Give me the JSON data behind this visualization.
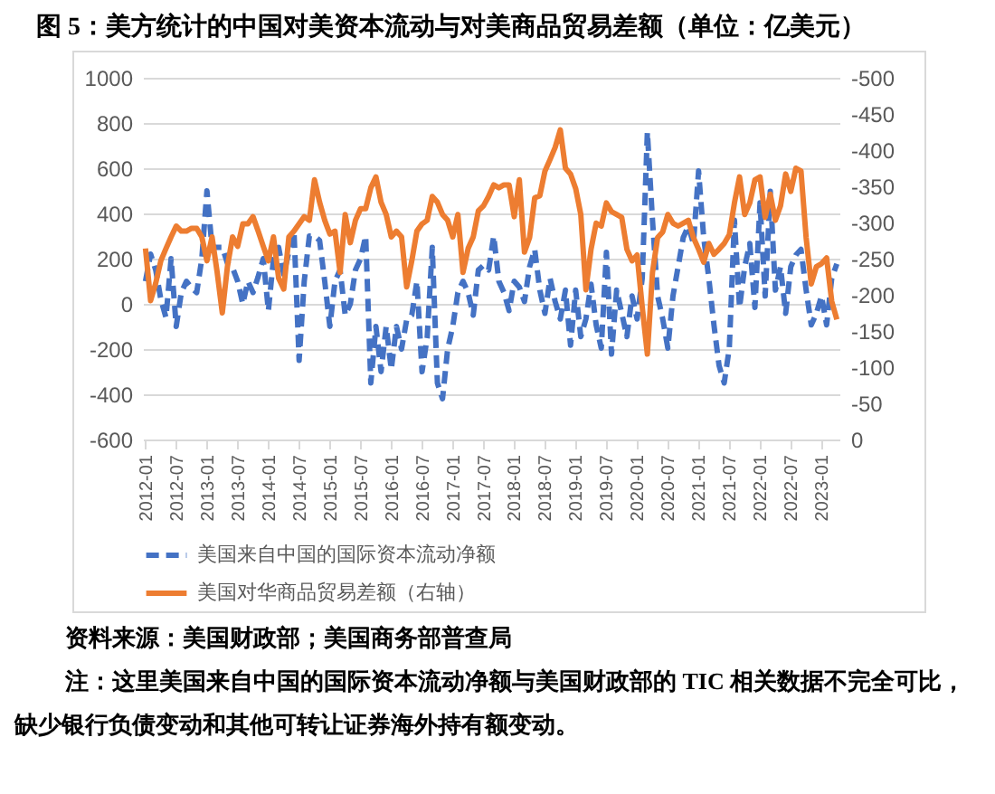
{
  "chart_data": {
    "type": "line",
    "title": "图 5：美方统计的中国对美资本流动与对美商品贸易差额（单位：亿美元）",
    "categories": [
      "2012-01",
      null,
      null,
      null,
      null,
      null,
      "2012-07",
      null,
      null,
      null,
      null,
      null,
      "2013-01",
      null,
      null,
      null,
      null,
      null,
      "2013-07",
      null,
      null,
      null,
      null,
      null,
      "2014-01",
      null,
      null,
      null,
      null,
      null,
      "2014-07",
      null,
      null,
      null,
      null,
      null,
      "2015-01",
      null,
      null,
      null,
      null,
      null,
      "2015-07",
      null,
      null,
      null,
      null,
      null,
      "2016-01",
      null,
      null,
      null,
      null,
      null,
      "2016-07",
      null,
      null,
      null,
      null,
      null,
      "2017-01",
      null,
      null,
      null,
      null,
      null,
      "2017-07",
      null,
      null,
      null,
      null,
      null,
      "2018-01",
      null,
      null,
      null,
      null,
      null,
      "2018-07",
      null,
      null,
      null,
      null,
      null,
      "2019-01",
      null,
      null,
      null,
      null,
      null,
      "2019-07",
      null,
      null,
      null,
      null,
      null,
      "2020-01",
      null,
      null,
      null,
      null,
      null,
      "2020-07",
      null,
      null,
      null,
      null,
      null,
      "2021-01",
      null,
      null,
      null,
      null,
      null,
      "2021-07",
      null,
      null,
      null,
      null,
      null,
      "2022-01",
      null,
      null,
      null,
      null,
      null,
      "2022-07",
      null,
      null,
      null,
      null,
      null,
      "2023-01",
      null,
      null,
      null
    ],
    "series": [
      {
        "name": "美国来自中国的国际资本流动净额",
        "color": "#4472c4",
        "line_style": "dashed",
        "values": [
          100,
          220,
          150,
          20,
          -60,
          200,
          -100,
          50,
          100,
          70,
          50,
          200,
          500,
          250,
          250,
          250,
          180,
          160,
          100,
          0,
          100,
          50,
          120,
          200,
          -30,
          200,
          250,
          130,
          230,
          320,
          -250,
          100,
          300,
          300,
          280,
          100,
          -100,
          100,
          150,
          -50,
          0,
          150,
          200,
          300,
          -350,
          -100,
          -300,
          -100,
          -290,
          -100,
          -200,
          -70,
          -50,
          100,
          -300,
          -150,
          250,
          -350,
          -420,
          -200,
          -100,
          50,
          100,
          50,
          -50,
          150,
          170,
          150,
          300,
          100,
          50,
          -30,
          100,
          74,
          10,
          164,
          241,
          61,
          -42,
          113,
          10,
          -67,
          61,
          -183,
          61,
          -145,
          -67,
          87,
          -93,
          -196,
          228,
          -222,
          61,
          -42,
          -145,
          35,
          -67,
          113,
          760,
          370,
          35,
          -67,
          -196,
          35,
          164,
          293,
          344,
          267,
          588,
          293,
          113,
          -93,
          -273,
          -350,
          -196,
          370,
          -16,
          164,
          267,
          -16,
          447,
          35,
          498,
          61,
          164,
          -42,
          164,
          216,
          241,
          61,
          -93,
          -42,
          35,
          -93,
          113,
          177
        ]
      },
      {
        "name": "美国对华商品贸易差额（右轴）",
        "color": "#ed7d31",
        "line_style": "solid",
        "axis": "y2",
        "values": [
          -264,
          -192,
          -216,
          -247,
          -264,
          -280,
          -295,
          -288,
          -288,
          -292,
          -292,
          -280,
          -247,
          -280,
          -231,
          -175,
          -239,
          -280,
          -267,
          -298,
          -298,
          -308,
          -288,
          -267,
          -247,
          -280,
          -223,
          -208,
          -280,
          -288,
          -298,
          -308,
          -303,
          -359,
          -328,
          -303,
          -284,
          -288,
          -231,
          -311,
          -272,
          -303,
          -319,
          -319,
          -348,
          -363,
          -328,
          -311,
          -280,
          -288,
          -280,
          -211,
          -247,
          -288,
          -298,
          -303,
          -336,
          -328,
          -311,
          -303,
          -280,
          -311,
          -231,
          -264,
          -280,
          -316,
          -323,
          -336,
          -352,
          -348,
          -352,
          -352,
          -308,
          -359,
          -259,
          -279,
          -334,
          -337,
          -371,
          -387,
          -404,
          -428,
          -375,
          -367,
          -347,
          -311,
          -207,
          -263,
          -299,
          -295,
          -327,
          -315,
          -311,
          -307,
          -263,
          -247,
          -255,
          -183,
          -118,
          -231,
          -279,
          -287,
          -311,
          -299,
          -295,
          -299,
          -303,
          -279,
          -263,
          -245,
          -271,
          -256,
          -263,
          -271,
          -283,
          -327,
          -363,
          -311,
          -327,
          -359,
          -363,
          -307,
          -339,
          -303,
          -323,
          -367,
          -343,
          -375,
          -371,
          -279,
          -215,
          -239,
          -243,
          -251,
          -191,
          -166
        ]
      }
    ],
    "ylim": [
      -600,
      1000
    ],
    "yticks": [
      -600,
      -400,
      -200,
      0,
      200,
      400,
      600,
      800,
      1000
    ],
    "y2lim": [
      0,
      -500
    ],
    "y2ticks": [
      0,
      -50,
      -100,
      -150,
      -200,
      -250,
      -300,
      -350,
      -400,
      -450,
      -500
    ],
    "grid": "y",
    "legend": "bottom",
    "marker": "none",
    "annotations": [
      "资料来源：美国财政部；美国商务部普查局",
      "注：这里美国来自中国的国际资本流动净额与美国财政部的 TIC 相关数据不完全可比，缺少银行负债变动和其他可转让证券海外持有额变动。"
    ]
  }
}
